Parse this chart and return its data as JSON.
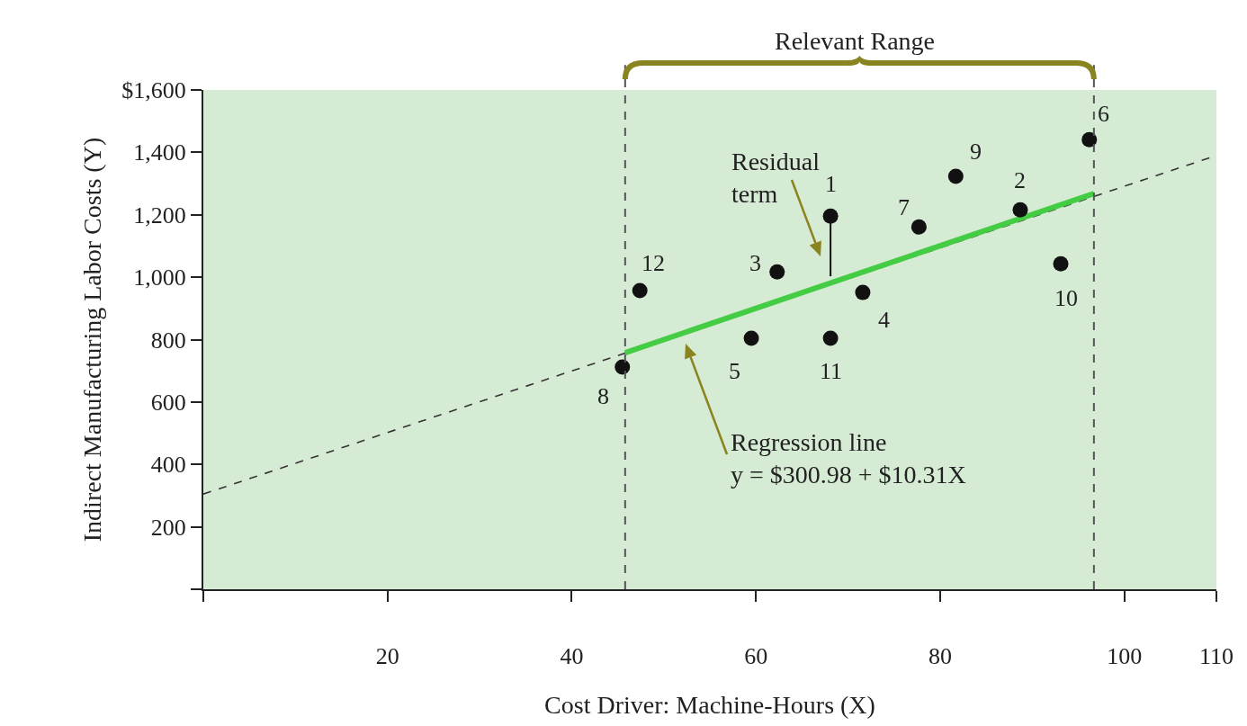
{
  "chart_data": {
    "type": "scatter",
    "xlabel": "Cost Driver: Machine-Hours (X)",
    "ylabel": "Indirect Manufacturing Labor Costs (Y)",
    "xlim": [
      0,
      110
    ],
    "xticks": [
      {
        "value": 0,
        "label": null
      },
      20,
      40,
      60,
      80,
      100,
      110
    ],
    "ylim": [
      0,
      1600
    ],
    "yticks": [
      {
        "value": 0,
        "label": null
      },
      200,
      400,
      600,
      800,
      {
        "value": 1000,
        "label": "1,000"
      },
      {
        "value": 1200,
        "label": "1,200"
      },
      {
        "value": 1400,
        "label": "1,400"
      },
      {
        "value": 1600,
        "label": "$1,600"
      }
    ],
    "grid": false,
    "series": [
      {
        "type": "scatter",
        "color": "#111111",
        "marker": "circle",
        "x": [
          68.1,
          88.7,
          62.3,
          71.6,
          59.5,
          96.2,
          77.7,
          45.5,
          81.7,
          93.1,
          68.1,
          47.4
        ],
        "values": [
          1196,
          1216,
          1017,
          951,
          804,
          1441,
          1161,
          712,
          1323,
          1043,
          804,
          957
        ]
      },
      {
        "type": "line",
        "color": "#333333",
        "line_style": "dashed",
        "marker": "none",
        "x": [
          0,
          110
        ],
        "values": [
          305,
          1390
        ]
      },
      {
        "type": "line",
        "color": "#44cc44",
        "line_style": "solid",
        "marker": "none",
        "x": [
          45.8,
          96.7
        ],
        "values": [
          758,
          1268
        ]
      },
      {
        "type": "line",
        "color": "#111111",
        "line_style": "solid",
        "marker": "none",
        "x": [
          68.1,
          68.1
        ],
        "values": [
          1196,
          1003
        ]
      }
    ],
    "ref_lines": [
      {
        "axis": "x",
        "value": 45.8,
        "color": "#555555",
        "line_style": "dashed"
      },
      {
        "axis": "x",
        "value": 96.7,
        "color": "#555555",
        "line_style": "dashed"
      }
    ],
    "annotations": [
      {
        "text": "1",
        "x": 68.1,
        "y": 1196
      },
      {
        "text": "2",
        "x": 88.7,
        "y": 1216
      },
      {
        "text": "3",
        "x": 62.3,
        "y": 1017
      },
      {
        "text": "4",
        "x": 71.6,
        "y": 951
      },
      {
        "text": "5",
        "x": 59.5,
        "y": 804
      },
      {
        "text": "6",
        "x": 96.2,
        "y": 1441
      },
      {
        "text": "7",
        "x": 77.7,
        "y": 1161
      },
      {
        "text": "8",
        "x": 45.5,
        "y": 712
      },
      {
        "text": "9",
        "x": 81.7,
        "y": 1323
      },
      {
        "text": "10",
        "x": 93.1,
        "y": 1043
      },
      {
        "text": "11",
        "x": 68.1,
        "y": 804
      },
      {
        "text": "12",
        "x": 47.4,
        "y": 957
      },
      "Residual\nterm",
      "Regression line\ny = $300.98 + $10.31X",
      "Relevant Range"
    ]
  }
}
